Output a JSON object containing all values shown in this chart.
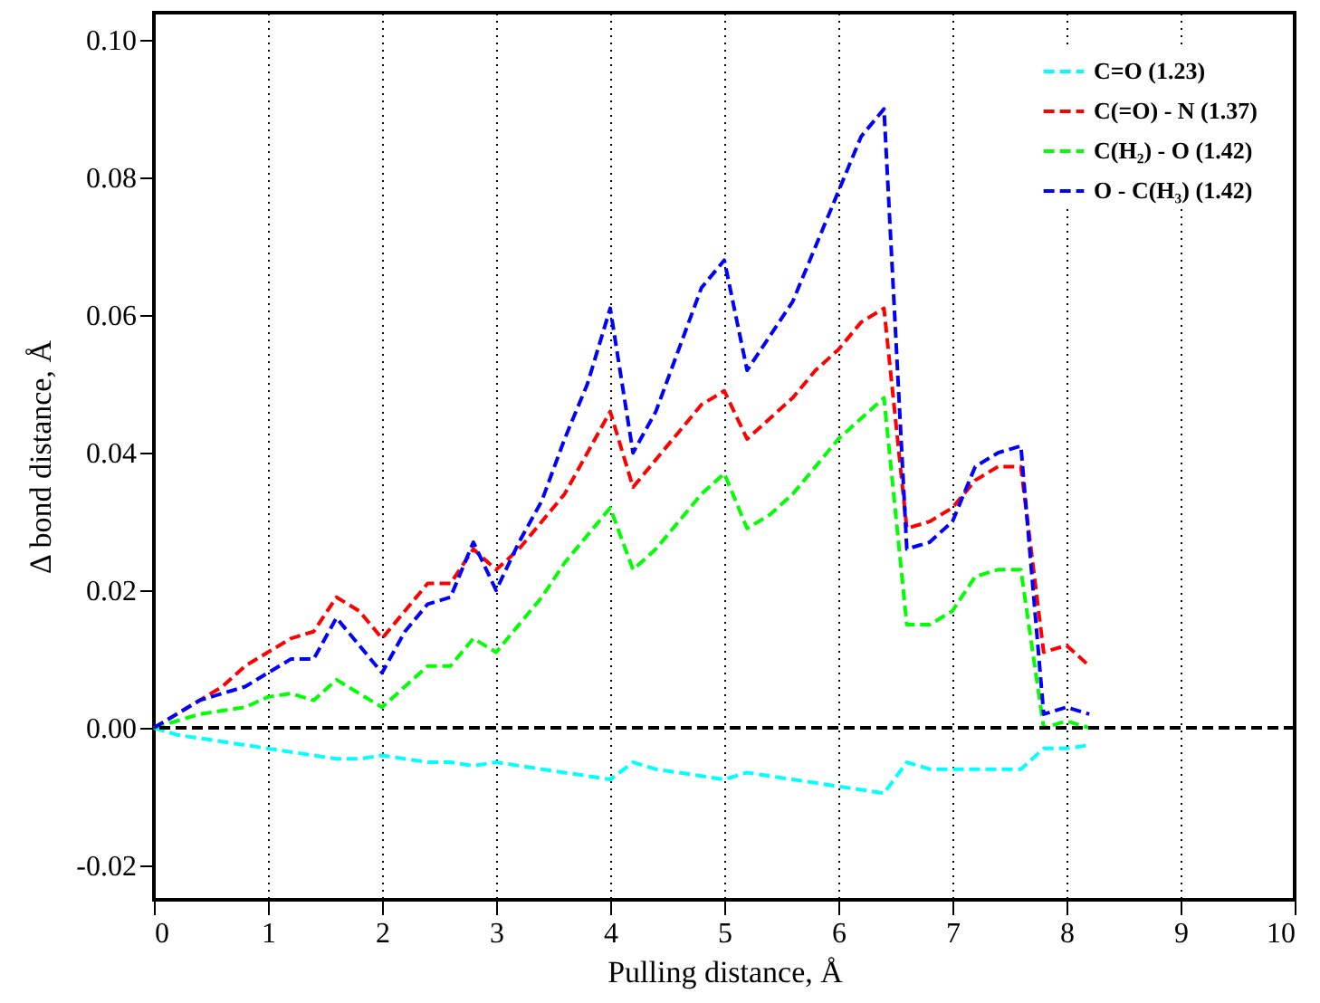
{
  "chart_data": {
    "type": "line",
    "xlabel": "Pulling distance, Å",
    "ylabel": "Δ bond distance, Å",
    "x": [
      0,
      0.2,
      0.4,
      0.6,
      0.8,
      1.0,
      1.2,
      1.4,
      1.6,
      1.8,
      2.0,
      2.2,
      2.4,
      2.6,
      2.8,
      3.0,
      3.2,
      3.4,
      3.6,
      3.8,
      4.0,
      4.2,
      4.4,
      4.6,
      4.8,
      5.0,
      5.2,
      5.4,
      5.6,
      5.8,
      6.0,
      6.2,
      6.4,
      6.6,
      6.8,
      7.0,
      7.2,
      7.4,
      7.6,
      7.8,
      8.0,
      8.2
    ],
    "series": [
      {
        "name": "C=O (1.23)",
        "color": "#00ffff",
        "values": [
          0,
          -0.001,
          -0.0015,
          -0.002,
          -0.0025,
          -0.003,
          -0.0035,
          -0.004,
          -0.0045,
          -0.0045,
          -0.004,
          -0.0045,
          -0.005,
          -0.005,
          -0.0055,
          -0.005,
          -0.0055,
          -0.006,
          -0.0065,
          -0.007,
          -0.0075,
          -0.005,
          -0.006,
          -0.0065,
          -0.007,
          -0.0075,
          -0.0065,
          -0.007,
          -0.0075,
          -0.008,
          -0.0085,
          -0.009,
          -0.0095,
          -0.005,
          -0.006,
          -0.006,
          -0.006,
          -0.006,
          -0.006,
          -0.003,
          -0.003,
          -0.0025
        ]
      },
      {
        "name": "C(=O) - N (1.37)",
        "color": "#ff0000",
        "values": [
          0,
          0.002,
          0.004,
          0.006,
          0.009,
          0.011,
          0.013,
          0.014,
          0.019,
          0.017,
          0.013,
          0.017,
          0.021,
          0.021,
          0.026,
          0.023,
          0.026,
          0.03,
          0.034,
          0.04,
          0.046,
          0.035,
          0.039,
          0.043,
          0.047,
          0.049,
          0.042,
          0.045,
          0.048,
          0.052,
          0.055,
          0.059,
          0.061,
          0.029,
          0.03,
          0.032,
          0.036,
          0.038,
          0.038,
          0.011,
          0.012,
          0.009
        ]
      },
      {
        "name": "C(H₂) - O (1.42)",
        "color": "#00ff00",
        "values": [
          0,
          0.001,
          0.002,
          0.0025,
          0.003,
          0.0045,
          0.005,
          0.004,
          0.007,
          0.005,
          0.003,
          0.006,
          0.009,
          0.009,
          0.013,
          0.011,
          0.015,
          0.019,
          0.024,
          0.028,
          0.032,
          0.023,
          0.026,
          0.03,
          0.034,
          0.037,
          0.029,
          0.031,
          0.034,
          0.038,
          0.042,
          0.045,
          0.048,
          0.015,
          0.015,
          0.017,
          0.022,
          0.023,
          0.023,
          0.0,
          0.001,
          0.0
        ]
      },
      {
        "name": "O - C(H₃) (1.42)",
        "color": "#0000ff",
        "values": [
          0,
          0.002,
          0.004,
          0.005,
          0.006,
          0.008,
          0.01,
          0.01,
          0.016,
          0.012,
          0.008,
          0.014,
          0.018,
          0.019,
          0.027,
          0.02,
          0.027,
          0.033,
          0.042,
          0.05,
          0.061,
          0.04,
          0.046,
          0.055,
          0.064,
          0.068,
          0.052,
          0.057,
          0.062,
          0.07,
          0.078,
          0.086,
          0.09,
          0.026,
          0.027,
          0.03,
          0.038,
          0.04,
          0.041,
          0.002,
          0.003,
          0.002
        ]
      }
    ],
    "xlim": [
      0,
      10
    ],
    "xticks": [
      0,
      1,
      2,
      3,
      4,
      5,
      6,
      7,
      8,
      9,
      10
    ],
    "ylim": [
      -0.025,
      0.104
    ],
    "yticks": [
      {
        "value": -0.02,
        "label": "-0.02"
      },
      {
        "value": 0,
        "label": "0.00"
      },
      {
        "value": 0.02,
        "label": "0.02"
      },
      {
        "value": 0.04,
        "label": "0.04"
      },
      {
        "value": 0.06,
        "label": "0.06"
      },
      {
        "value": 0.08,
        "label": "0.08"
      },
      {
        "value": 0.1,
        "label": "0.10"
      }
    ],
    "ref_lines": [
      {
        "axis": "y",
        "value": 0,
        "color": "#000000",
        "line_style": "dashed"
      }
    ],
    "grid": "x",
    "legend": "top right",
    "line_style": "dashed",
    "marker": "none"
  }
}
